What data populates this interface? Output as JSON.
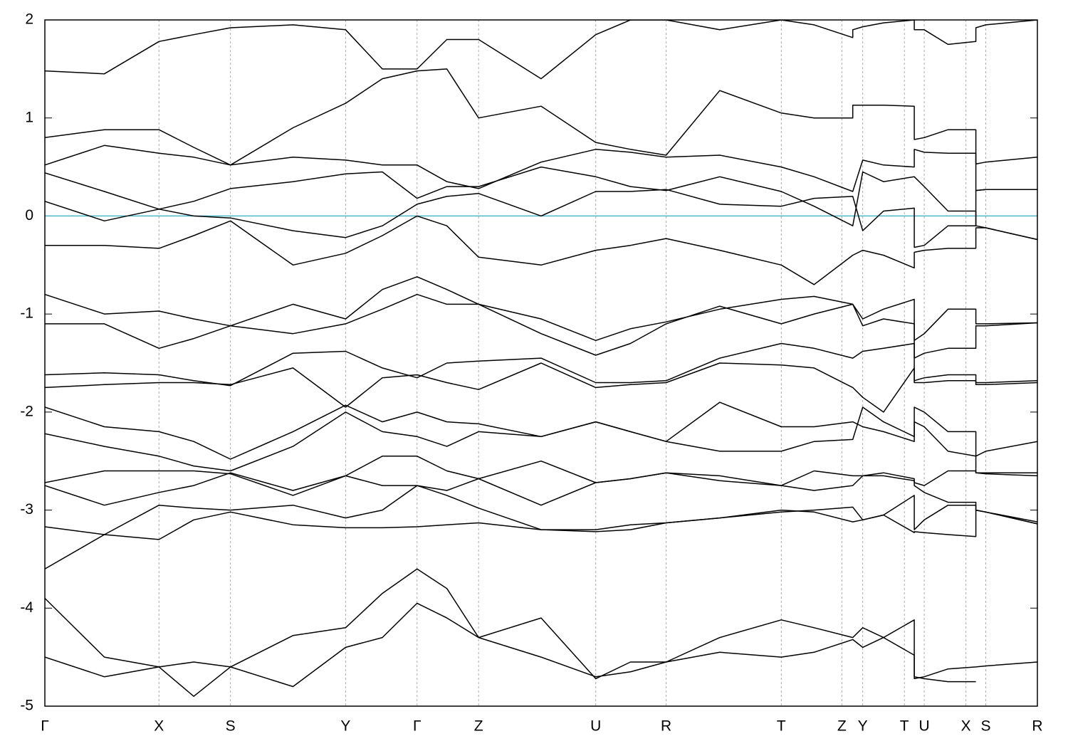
{
  "chart_data": {
    "type": "line",
    "x": [
      0,
      0.6,
      1.15,
      1.5,
      1.87,
      2.5,
      3.03,
      3.4,
      3.75,
      4.05,
      4.37,
      5.0,
      5.55,
      5.9,
      6.26,
      6.8,
      7.42,
      7.75,
      8.14,
      8.14,
      8.24,
      8.45,
      8.76,
      8.76,
      8.86,
      9.1,
      9.38,
      9.38,
      9.48,
      10
    ],
    "xlim": [
      0,
      10
    ],
    "xticks": [
      {
        "value": 0,
        "label": "Γ"
      },
      {
        "value": 1.15,
        "label": "X"
      },
      {
        "value": 1.87,
        "label": "S"
      },
      {
        "value": 3.03,
        "label": "Y"
      },
      {
        "value": 3.75,
        "label": "Γ"
      },
      {
        "value": 4.37,
        "label": "Z"
      },
      {
        "value": 5.55,
        "label": "U"
      },
      {
        "value": 6.26,
        "label": "R"
      },
      {
        "value": 7.42,
        "label": "T"
      },
      {
        "value": 8.03,
        "label": "Z"
      },
      {
        "value": 8.24,
        "label": "Y"
      },
      {
        "value": 8.66,
        "label": "T"
      },
      {
        "value": 8.86,
        "label": "U"
      },
      {
        "value": 9.28,
        "label": "X"
      },
      {
        "value": 9.48,
        "label": "S"
      },
      {
        "value": 10,
        "label": "R"
      }
    ],
    "ylim": [
      -5,
      2
    ],
    "yticks": [
      -5,
      -4,
      -3,
      -2,
      -1,
      0,
      1,
      2
    ],
    "x_grid": true,
    "color": "#000000",
    "hline": {
      "value": 0,
      "color": "#4db8c8"
    },
    "series": [
      {
        "values": [
          1.48,
          1.45,
          1.78,
          1.85,
          1.92,
          1.95,
          1.9,
          1.5,
          1.5,
          1.8,
          1.8,
          1.4,
          1.85,
          2.0,
          2.0,
          1.9,
          2.0,
          1.95,
          1.82,
          1.9,
          1.93,
          1.97,
          2.0,
          1.9,
          1.9,
          1.75,
          1.78,
          1.92,
          1.95,
          2.0
        ]
      },
      {
        "values": [
          0.8,
          0.88,
          0.88,
          0.7,
          0.52,
          0.9,
          1.15,
          1.4,
          1.48,
          1.5,
          1.0,
          1.12,
          0.75,
          0.68,
          0.62,
          1.28,
          1.05,
          1.0,
          1.0,
          1.13,
          1.13,
          1.13,
          1.12,
          0.78,
          0.8,
          0.88,
          0.88,
          0.53,
          0.55,
          0.6
        ]
      },
      {
        "values": [
          0.52,
          0.72,
          0.64,
          0.6,
          0.52,
          0.6,
          0.57,
          0.52,
          0.52,
          0.35,
          0.28,
          0.55,
          0.68,
          0.65,
          0.6,
          0.62,
          0.5,
          0.4,
          0.25,
          0.25,
          0.57,
          0.52,
          0.5,
          0.68,
          0.65,
          0.64,
          0.64,
          0.26,
          0.27,
          0.27
        ]
      },
      {
        "values": [
          0.44,
          0.25,
          0.07,
          0.15,
          0.28,
          0.35,
          0.43,
          0.45,
          0.18,
          0.3,
          0.3,
          0.5,
          0.4,
          0.3,
          0.26,
          0.4,
          0.25,
          0.1,
          -0.1,
          -0.1,
          0.45,
          0.35,
          0.4,
          0.4,
          0.3,
          0.05,
          0.05,
          -0.1,
          -0.12,
          -0.24
        ]
      },
      {
        "values": [
          0.15,
          -0.05,
          0.07,
          0.0,
          -0.02,
          -0.15,
          -0.22,
          -0.1,
          0.12,
          0.2,
          0.23,
          0.0,
          0.25,
          0.25,
          0.27,
          0.12,
          0.1,
          0.18,
          0.2,
          0.2,
          -0.15,
          0.05,
          0.08,
          -0.32,
          -0.3,
          -0.1,
          -0.1,
          0.26,
          0.27,
          0.27
        ]
      },
      {
        "values": [
          -0.3,
          -0.3,
          -0.33,
          -0.2,
          -0.05,
          -0.5,
          -0.38,
          -0.2,
          0.0,
          -0.1,
          -0.42,
          -0.5,
          -0.35,
          -0.3,
          -0.23,
          -0.35,
          -0.5,
          -0.7,
          -0.4,
          -0.4,
          -0.35,
          -0.4,
          -0.53,
          -0.37,
          -0.35,
          -0.33,
          -0.33,
          -0.12,
          -0.12,
          -0.24
        ]
      },
      {
        "values": [
          -0.8,
          -1.0,
          -0.97,
          -1.05,
          -1.12,
          -0.9,
          -1.05,
          -0.75,
          -0.62,
          -0.75,
          -0.9,
          -1.05,
          -1.27,
          -1.15,
          -1.08,
          -0.95,
          -0.85,
          -0.82,
          -0.9,
          -0.9,
          -1.05,
          -0.95,
          -0.85,
          -1.27,
          -1.2,
          -0.95,
          -0.95,
          -1.1,
          -1.1,
          -1.09
        ]
      },
      {
        "values": [
          -1.1,
          -1.1,
          -1.35,
          -1.25,
          -1.12,
          -1.2,
          -1.1,
          -0.95,
          -0.8,
          -0.9,
          -0.9,
          -1.2,
          -1.42,
          -1.3,
          -1.1,
          -0.92,
          -1.1,
          -1.0,
          -0.9,
          -0.9,
          -1.12,
          -1.05,
          -1.1,
          -1.45,
          -1.4,
          -1.35,
          -1.35,
          -1.12,
          -1.12,
          -1.09
        ]
      },
      {
        "values": [
          -1.62,
          -1.6,
          -1.62,
          -1.68,
          -1.73,
          -1.4,
          -1.38,
          -1.55,
          -1.65,
          -1.5,
          -1.48,
          -1.45,
          -1.7,
          -1.7,
          -1.68,
          -1.45,
          -1.3,
          -1.35,
          -1.45,
          -1.45,
          -1.38,
          -1.35,
          -1.3,
          -1.68,
          -1.65,
          -1.62,
          -1.62,
          -1.7,
          -1.7,
          -1.68
        ]
      },
      {
        "values": [
          -1.75,
          -1.72,
          -1.7,
          -1.7,
          -1.72,
          -1.55,
          -1.95,
          -1.65,
          -1.62,
          -1.7,
          -1.77,
          -1.5,
          -1.75,
          -1.72,
          -1.7,
          -1.5,
          -1.52,
          -1.55,
          -1.75,
          -1.75,
          -1.85,
          -2.0,
          -1.55,
          -1.7,
          -1.7,
          -1.68,
          -1.68,
          -1.72,
          -1.72,
          -1.7
        ]
      },
      {
        "values": [
          -1.95,
          -2.15,
          -2.2,
          -2.3,
          -2.48,
          -2.2,
          -1.93,
          -2.1,
          -2.0,
          -2.1,
          -2.12,
          -2.25,
          -2.1,
          -2.2,
          -2.3,
          -1.9,
          -2.15,
          -2.15,
          -2.1,
          -2.1,
          -2.15,
          -2.2,
          -2.3,
          -1.95,
          -2.0,
          -2.2,
          -2.2,
          -2.45,
          -2.4,
          -2.3
        ]
      },
      {
        "values": [
          -2.22,
          -2.35,
          -2.45,
          -2.55,
          -2.6,
          -2.35,
          -2.0,
          -2.2,
          -2.25,
          -2.35,
          -2.2,
          -2.25,
          -2.1,
          -2.2,
          -2.3,
          -2.4,
          -2.4,
          -2.3,
          -2.28,
          -2.28,
          -1.95,
          -2.1,
          -2.25,
          -2.1,
          -2.15,
          -2.4,
          -2.45,
          -2.62,
          -2.62,
          -2.62
        ]
      },
      {
        "values": [
          -2.72,
          -2.6,
          -2.6,
          -2.6,
          -2.63,
          -2.85,
          -2.65,
          -2.45,
          -2.45,
          -2.6,
          -2.68,
          -2.5,
          -2.72,
          -2.68,
          -2.62,
          -2.65,
          -2.75,
          -2.6,
          -2.65,
          -2.65,
          -2.65,
          -2.62,
          -2.68,
          -2.72,
          -2.75,
          -2.6,
          -2.6,
          -2.62,
          -2.63,
          -2.65
        ]
      },
      {
        "values": [
          -2.75,
          -2.95,
          -2.82,
          -2.75,
          -2.62,
          -2.8,
          -2.65,
          -2.75,
          -2.75,
          -2.8,
          -2.68,
          -2.95,
          -2.72,
          -2.68,
          -2.62,
          -2.7,
          -2.75,
          -2.8,
          -2.75,
          -2.75,
          -2.65,
          -2.65,
          -2.7,
          -2.75,
          -2.82,
          -2.92,
          -2.92,
          -3.0,
          -3.02,
          -3.12
        ]
      },
      {
        "values": [
          -3.17,
          -3.25,
          -2.95,
          -2.98,
          -3.0,
          -2.95,
          -3.08,
          -3.0,
          -2.75,
          -2.85,
          -2.98,
          -3.2,
          -3.2,
          -3.15,
          -3.13,
          -3.08,
          -3.02,
          -3.0,
          -2.97,
          -2.97,
          -3.1,
          -3.05,
          -2.85,
          -3.2,
          -3.1,
          -2.95,
          -2.95,
          -3.0,
          -3.02,
          -3.14
        ]
      },
      {
        "values": [
          -3.6,
          -3.25,
          -3.3,
          -3.1,
          -3.02,
          -3.15,
          -3.18,
          -3.18,
          -3.17,
          -3.15,
          -3.13,
          -3.2,
          -3.22,
          -3.2,
          -3.13,
          -3.08,
          -3.0,
          -3.02,
          -3.12,
          -3.12,
          -3.1,
          -3.05,
          -3.23,
          -3.22,
          -3.23,
          -3.25,
          -3.27,
          -3.0,
          -3.02,
          -3.14
        ]
      },
      {
        "values": [
          -3.9,
          -4.5,
          -4.6,
          -4.55,
          -4.6,
          -4.28,
          -4.2,
          -3.85,
          -3.6,
          -3.8,
          -4.3,
          -4.5,
          -4.7,
          -4.65,
          -4.55,
          -4.3,
          -4.12,
          -4.2,
          -4.3,
          -4.3,
          -4.2,
          -4.3,
          -4.12,
          -4.72,
          -4.7,
          -4.62,
          -4.6,
          -4.6,
          -4.59,
          -4.55
        ]
      },
      {
        "values": [
          -4.5,
          -4.7,
          -4.6,
          -4.9,
          -4.6,
          -4.8,
          -4.4,
          -4.3,
          -3.95,
          -4.1,
          -4.3,
          -4.1,
          -4.72,
          -4.55,
          -4.55,
          -4.45,
          -4.5,
          -4.45,
          -4.32,
          -4.32,
          -4.4,
          -4.3,
          -4.48,
          -4.7,
          -4.72,
          -4.75,
          -4.75,
          null,
          null,
          null
        ]
      }
    ]
  }
}
